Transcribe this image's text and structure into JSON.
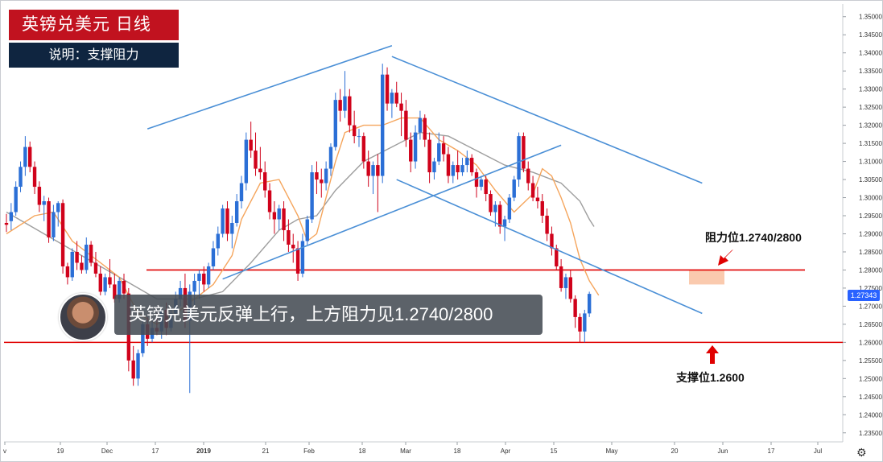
{
  "header": {
    "title": "英镑兑美元  日线",
    "subtitle": "说明：支撑阻力"
  },
  "banner": {
    "text": "英镑兑美元反弹上行，上方阻力见1.2740/2800"
  },
  "annotations": {
    "resistance_label": "阻力位1.2740/2800",
    "support_label": "支撑位1.2600"
  },
  "colors": {
    "up_candle": "#2b6fd6",
    "down_candle": "#d0021b",
    "ma_fast": "#f5a55c",
    "ma_slow": "#9e9e9e",
    "trendline": "#4a8fd6",
    "level_line": "#e00000",
    "title_bg": "#c1121f",
    "subtitle_bg": "#0f2540",
    "arrow": "#e00000",
    "resistance_zone": "#f8b48c"
  },
  "icons": {
    "avatar": "presenter-avatar",
    "settings": "gear-icon",
    "arrows": [
      "resistance-arrow-icon",
      "support-arrow-icon"
    ]
  },
  "chart_data": {
    "type": "candlestick",
    "instrument": "GBP/USD",
    "timeframe": "Daily",
    "ylim": [
      1.2325,
      1.3535
    ],
    "y_ticks": [
      "1.35000",
      "1.34500",
      "1.34000",
      "1.33500",
      "1.33000",
      "1.32500",
      "1.32000",
      "1.31500",
      "1.31000",
      "1.30500",
      "1.30000",
      "1.29500",
      "1.29000",
      "1.28500",
      "1.28000",
      "1.27500",
      "1.27000",
      "1.26500",
      "1.26000",
      "1.25500",
      "1.25000",
      "1.24500",
      "1.24000",
      "1.23500"
    ],
    "x_ticks": [
      "v",
      "19",
      "Dec",
      "17",
      "2019",
      "21",
      "Feb",
      "18",
      "Mar",
      "18",
      "Apr",
      "15",
      "May",
      "20",
      "Jun",
      "17",
      "Jul"
    ],
    "last_price": "1.27343",
    "levels": [
      {
        "name": "resistance",
        "value": 1.28
      },
      {
        "name": "support",
        "value": 1.26
      }
    ],
    "resistance_zone": [
      1.276,
      1.28
    ],
    "candles": [
      [
        1.293,
        1.2955,
        1.2905,
        1.2925
      ],
      [
        1.2935,
        1.2985,
        1.291,
        1.296
      ],
      [
        1.296,
        1.3045,
        1.295,
        1.303
      ],
      [
        1.303,
        1.31,
        1.3015,
        1.3085
      ],
      [
        1.3085,
        1.317,
        1.306,
        1.314
      ],
      [
        1.314,
        1.3155,
        1.307,
        1.3085
      ],
      [
        1.3085,
        1.31,
        1.301,
        1.303
      ],
      [
        1.303,
        1.3045,
        1.296,
        1.298
      ],
      [
        1.298,
        1.3005,
        1.2935,
        1.299
      ],
      [
        1.299,
        1.3,
        1.2875,
        1.289
      ],
      [
        1.289,
        1.298,
        1.288,
        1.296
      ],
      [
        1.296,
        1.299,
        1.292,
        1.2985
      ],
      [
        1.2985,
        1.2995,
        1.279,
        1.281
      ],
      [
        1.281,
        1.282,
        1.276,
        1.278
      ],
      [
        1.278,
        1.286,
        1.277,
        1.285
      ],
      [
        1.285,
        1.288,
        1.28,
        1.282
      ],
      [
        1.282,
        1.284,
        1.279,
        1.28
      ],
      [
        1.28,
        1.289,
        1.279,
        1.287
      ],
      [
        1.287,
        1.288,
        1.281,
        1.282
      ],
      [
        1.282,
        1.285,
        1.278,
        1.279
      ],
      [
        1.279,
        1.281,
        1.273,
        1.274
      ],
      [
        1.274,
        1.279,
        1.273,
        1.278
      ],
      [
        1.278,
        1.283,
        1.275,
        1.276
      ],
      [
        1.276,
        1.279,
        1.271,
        1.272
      ],
      [
        1.272,
        1.278,
        1.271,
        1.277
      ],
      [
        1.277,
        1.279,
        1.272,
        1.2735
      ],
      [
        1.2735,
        1.275,
        1.252,
        1.255
      ],
      [
        1.255,
        1.259,
        1.248,
        1.25
      ],
      [
        1.25,
        1.258,
        1.248,
        1.257
      ],
      [
        1.257,
        1.266,
        1.256,
        1.265
      ],
      [
        1.265,
        1.267,
        1.259,
        1.261
      ],
      [
        1.261,
        1.266,
        1.26,
        1.264
      ],
      [
        1.264,
        1.268,
        1.262,
        1.263
      ],
      [
        1.263,
        1.27,
        1.261,
        1.269
      ],
      [
        1.269,
        1.271,
        1.262,
        1.264
      ],
      [
        1.264,
        1.27,
        1.263,
        1.268
      ],
      [
        1.268,
        1.274,
        1.266,
        1.272
      ],
      [
        1.272,
        1.277,
        1.27,
        1.275
      ],
      [
        1.275,
        1.279,
        1.264,
        1.266
      ],
      [
        1.266,
        1.276,
        1.246,
        1.274
      ],
      [
        1.274,
        1.279,
        1.27,
        1.277
      ],
      [
        1.277,
        1.28,
        1.272,
        1.279
      ],
      [
        1.279,
        1.281,
        1.274,
        1.276
      ],
      [
        1.276,
        1.282,
        1.275,
        1.281
      ],
      [
        1.281,
        1.288,
        1.28,
        1.286
      ],
      [
        1.286,
        1.292,
        1.284,
        1.29
      ],
      [
        1.29,
        1.298,
        1.289,
        1.297
      ],
      [
        1.297,
        1.299,
        1.288,
        1.29
      ],
      [
        1.29,
        1.295,
        1.286,
        1.293
      ],
      [
        1.293,
        1.301,
        1.292,
        1.299
      ],
      [
        1.299,
        1.306,
        1.297,
        1.304
      ],
      [
        1.304,
        1.318,
        1.302,
        1.316
      ],
      [
        1.316,
        1.321,
        1.311,
        1.313
      ],
      [
        1.313,
        1.318,
        1.306,
        1.308
      ],
      [
        1.308,
        1.314,
        1.305,
        1.307
      ],
      [
        1.307,
        1.31,
        1.3,
        1.302
      ],
      [
        1.302,
        1.304,
        1.294,
        1.296
      ],
      [
        1.296,
        1.299,
        1.29,
        1.294
      ],
      [
        1.294,
        1.298,
        1.291,
        1.297
      ],
      [
        1.297,
        1.299,
        1.288,
        1.291
      ],
      [
        1.291,
        1.294,
        1.285,
        1.287
      ],
      [
        1.287,
        1.29,
        1.282,
        1.286
      ],
      [
        1.286,
        1.288,
        1.277,
        1.279
      ],
      [
        1.279,
        1.29,
        1.278,
        1.288
      ],
      [
        1.288,
        1.295,
        1.287,
        1.294
      ],
      [
        1.294,
        1.309,
        1.293,
        1.307
      ],
      [
        1.307,
        1.31,
        1.301,
        1.305
      ],
      [
        1.305,
        1.308,
        1.3,
        1.304
      ],
      [
        1.304,
        1.31,
        1.302,
        1.308
      ],
      [
        1.308,
        1.315,
        1.306,
        1.314
      ],
      [
        1.314,
        1.329,
        1.313,
        1.327
      ],
      [
        1.327,
        1.33,
        1.321,
        1.324
      ],
      [
        1.324,
        1.335,
        1.322,
        1.328
      ],
      [
        1.328,
        1.33,
        1.318,
        1.32
      ],
      [
        1.32,
        1.324,
        1.315,
        1.317
      ],
      [
        1.317,
        1.319,
        1.314,
        1.317
      ],
      [
        1.317,
        1.318,
        1.308,
        1.31
      ],
      [
        1.31,
        1.313,
        1.303,
        1.306
      ],
      [
        1.306,
        1.31,
        1.301,
        1.309
      ],
      [
        1.309,
        1.312,
        1.296,
        1.306
      ],
      [
        1.306,
        1.337,
        1.304,
        1.334
      ],
      [
        1.334,
        1.336,
        1.324,
        1.326
      ],
      [
        1.326,
        1.33,
        1.322,
        1.329
      ],
      [
        1.329,
        1.332,
        1.325,
        1.326
      ],
      [
        1.326,
        1.329,
        1.317,
        1.324
      ],
      [
        1.324,
        1.327,
        1.314,
        1.316
      ],
      [
        1.316,
        1.318,
        1.307,
        1.31
      ],
      [
        1.31,
        1.32,
        1.308,
        1.318
      ],
      [
        1.318,
        1.324,
        1.316,
        1.322
      ],
      [
        1.322,
        1.323,
        1.314,
        1.316
      ],
      [
        1.316,
        1.318,
        1.304,
        1.307
      ],
      [
        1.307,
        1.311,
        1.305,
        1.31
      ],
      [
        1.31,
        1.318,
        1.309,
        1.315
      ],
      [
        1.315,
        1.317,
        1.31,
        1.312
      ],
      [
        1.312,
        1.314,
        1.304,
        1.306
      ],
      [
        1.306,
        1.31,
        1.304,
        1.309
      ],
      [
        1.309,
        1.313,
        1.305,
        1.307
      ],
      [
        1.307,
        1.311,
        1.306,
        1.309
      ],
      [
        1.309,
        1.313,
        1.307,
        1.311
      ],
      [
        1.311,
        1.312,
        1.306,
        1.307
      ],
      [
        1.307,
        1.308,
        1.3,
        1.303
      ],
      [
        1.303,
        1.306,
        1.302,
        1.305
      ],
      [
        1.305,
        1.306,
        1.299,
        1.301
      ],
      [
        1.301,
        1.302,
        1.295,
        1.296
      ],
      [
        1.296,
        1.299,
        1.292,
        1.298
      ],
      [
        1.298,
        1.299,
        1.29,
        1.292
      ],
      [
        1.292,
        1.295,
        1.288,
        1.294
      ],
      [
        1.294,
        1.301,
        1.293,
        1.3
      ],
      [
        1.3,
        1.306,
        1.299,
        1.305
      ],
      [
        1.305,
        1.318,
        1.303,
        1.317
      ],
      [
        1.317,
        1.318,
        1.307,
        1.308
      ],
      [
        1.308,
        1.31,
        1.302,
        1.304
      ],
      [
        1.304,
        1.306,
        1.299,
        1.3
      ],
      [
        1.3,
        1.303,
        1.297,
        1.299
      ],
      [
        1.299,
        1.301,
        1.293,
        1.295
      ],
      [
        1.295,
        1.297,
        1.288,
        1.29
      ],
      [
        1.29,
        1.292,
        1.284,
        1.286
      ],
      [
        1.286,
        1.287,
        1.28,
        1.281
      ],
      [
        1.281,
        1.283,
        1.274,
        1.275
      ],
      [
        1.275,
        1.279,
        1.272,
        1.278
      ],
      [
        1.278,
        1.28,
        1.271,
        1.272
      ],
      [
        1.272,
        1.273,
        1.264,
        1.267
      ],
      [
        1.267,
        1.268,
        1.26,
        1.263
      ],
      [
        1.263,
        1.269,
        1.26,
        1.268
      ],
      [
        1.268,
        1.274,
        1.267,
        1.2734
      ]
    ],
    "ma_fast": [
      [
        0,
        1.29
      ],
      [
        6,
        1.295
      ],
      [
        10,
        1.296
      ],
      [
        14,
        1.288
      ],
      [
        18,
        1.284
      ],
      [
        24,
        1.278
      ],
      [
        28,
        1.268
      ],
      [
        32,
        1.265
      ],
      [
        36,
        1.268
      ],
      [
        40,
        1.272
      ],
      [
        44,
        1.276
      ],
      [
        48,
        1.284
      ],
      [
        50,
        1.294
      ],
      [
        54,
        1.304
      ],
      [
        58,
        1.305
      ],
      [
        62,
        1.295
      ],
      [
        64,
        1.288
      ],
      [
        66,
        1.29
      ],
      [
        68,
        1.3
      ],
      [
        70,
        1.31
      ],
      [
        72,
        1.318
      ],
      [
        76,
        1.32
      ],
      [
        80,
        1.32
      ],
      [
        84,
        1.322
      ],
      [
        88,
        1.322
      ],
      [
        92,
        1.316
      ],
      [
        96,
        1.313
      ],
      [
        100,
        1.309
      ],
      [
        104,
        1.302
      ],
      [
        108,
        1.296
      ],
      [
        112,
        1.301
      ],
      [
        114,
        1.308
      ],
      [
        116,
        1.306
      ],
      [
        118,
        1.3
      ],
      [
        120,
        1.293
      ],
      [
        122,
        1.283
      ],
      [
        124,
        1.277
      ],
      [
        126,
        1.273
      ]
    ],
    "ma_slow": [
      [
        0,
        1.296
      ],
      [
        8,
        1.29
      ],
      [
        16,
        1.284
      ],
      [
        24,
        1.278
      ],
      [
        32,
        1.272
      ],
      [
        40,
        1.272
      ],
      [
        46,
        1.274
      ],
      [
        52,
        1.282
      ],
      [
        58,
        1.291
      ],
      [
        62,
        1.294
      ],
      [
        66,
        1.295
      ],
      [
        70,
        1.302
      ],
      [
        76,
        1.31
      ],
      [
        82,
        1.314
      ],
      [
        88,
        1.318
      ],
      [
        94,
        1.317
      ],
      [
        100,
        1.313
      ],
      [
        106,
        1.309
      ],
      [
        112,
        1.307
      ],
      [
        118,
        1.304
      ],
      [
        122,
        1.299
      ],
      [
        124,
        1.294
      ],
      [
        125,
        1.292
      ]
    ],
    "trendlines": [
      {
        "name": "upper-rising",
        "from": [
          30,
          1.319
        ],
        "to": [
          82,
          1.342
        ]
      },
      {
        "name": "upper-falling",
        "from": [
          82,
          1.339
        ],
        "to": [
          148,
          1.304
        ]
      },
      {
        "name": "lower-falling",
        "from": [
          83,
          1.305
        ],
        "to": [
          148,
          1.268
        ]
      },
      {
        "name": "lower-rising",
        "from": [
          46,
          1.2775
        ],
        "to": [
          118,
          1.3145
        ]
      }
    ]
  }
}
